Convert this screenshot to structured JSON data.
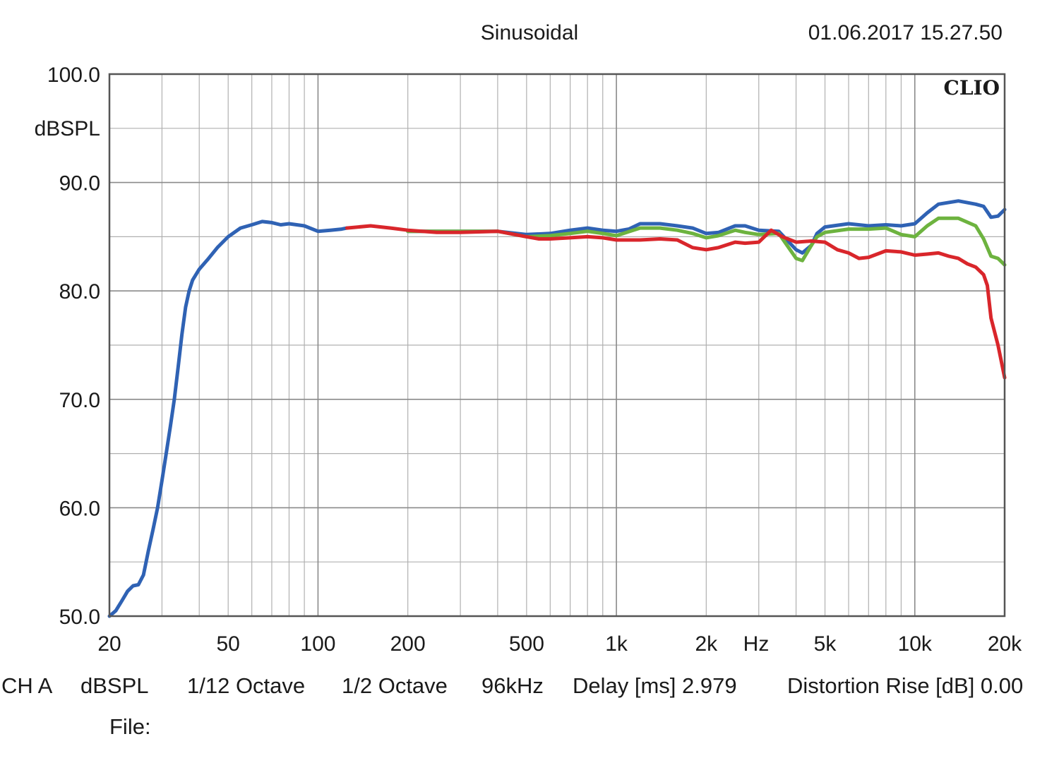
{
  "header": {
    "mode": "Sinusoidal",
    "timestamp": "01.06.2017 15.27.50"
  },
  "logo_text": "CLIO",
  "chart_data": {
    "type": "line",
    "x_scale": "log",
    "xlim": [
      20,
      20000
    ],
    "ylim": [
      50,
      100
    ],
    "y_unit": "dBSPL",
    "x_unit": "Hz",
    "y_ticks": [
      "100.0",
      "90.0",
      "80.0",
      "70.0",
      "60.0",
      "50.0"
    ],
    "x_ticks": [
      {
        "value": 20,
        "label": "20"
      },
      {
        "value": 50,
        "label": "50"
      },
      {
        "value": 100,
        "label": "100"
      },
      {
        "value": 200,
        "label": "200"
      },
      {
        "value": 500,
        "label": "500"
      },
      {
        "value": 1000,
        "label": "1k"
      },
      {
        "value": 2000,
        "label": "2k"
      },
      {
        "value": 5000,
        "label": "5k"
      },
      {
        "value": 10000,
        "label": "10k"
      },
      {
        "value": 20000,
        "label": "20k"
      }
    ],
    "grid": true,
    "series": [
      {
        "color": "#2f62b4",
        "points": [
          [
            20,
            50.0
          ],
          [
            21,
            50.5
          ],
          [
            22,
            51.4
          ],
          [
            23,
            52.3
          ],
          [
            24,
            52.8
          ],
          [
            25,
            52.9
          ],
          [
            26,
            53.8
          ],
          [
            27,
            56.0
          ],
          [
            28,
            58.0
          ],
          [
            29,
            60.0
          ],
          [
            30,
            62.5
          ],
          [
            31,
            65.0
          ],
          [
            32,
            67.5
          ],
          [
            33,
            70.0
          ],
          [
            34,
            73.0
          ],
          [
            35,
            76.0
          ],
          [
            36,
            78.5
          ],
          [
            37,
            80.0
          ],
          [
            38,
            81.0
          ],
          [
            40,
            82.0
          ],
          [
            43,
            83.0
          ],
          [
            46,
            84.0
          ],
          [
            50,
            85.0
          ],
          [
            55,
            85.8
          ],
          [
            60,
            86.1
          ],
          [
            65,
            86.4
          ],
          [
            70,
            86.3
          ],
          [
            75,
            86.1
          ],
          [
            80,
            86.2
          ],
          [
            90,
            86.0
          ],
          [
            100,
            85.5
          ],
          [
            110,
            85.6
          ],
          [
            120,
            85.7
          ],
          [
            125,
            85.8
          ]
        ]
      },
      {
        "color": "#2f62b4",
        "points": [
          [
            200,
            85.5
          ],
          [
            300,
            85.5
          ],
          [
            400,
            85.5
          ],
          [
            500,
            85.2
          ],
          [
            600,
            85.3
          ],
          [
            700,
            85.6
          ],
          [
            800,
            85.8
          ],
          [
            900,
            85.6
          ],
          [
            1000,
            85.5
          ],
          [
            1100,
            85.7
          ],
          [
            1200,
            86.2
          ],
          [
            1400,
            86.2
          ],
          [
            1600,
            86.0
          ],
          [
            1800,
            85.8
          ],
          [
            2000,
            85.3
          ],
          [
            2200,
            85.4
          ],
          [
            2500,
            86.0
          ],
          [
            2700,
            86.0
          ],
          [
            3000,
            85.6
          ],
          [
            3500,
            85.5
          ],
          [
            4000,
            83.8
          ],
          [
            4200,
            83.5
          ],
          [
            4500,
            84.2
          ],
          [
            4700,
            85.3
          ],
          [
            5000,
            85.9
          ],
          [
            6000,
            86.2
          ],
          [
            7000,
            86.0
          ],
          [
            8000,
            86.1
          ],
          [
            9000,
            86.0
          ],
          [
            10000,
            86.2
          ],
          [
            11000,
            87.2
          ],
          [
            12000,
            88.0
          ],
          [
            14000,
            88.3
          ],
          [
            16000,
            88.0
          ],
          [
            17000,
            87.8
          ],
          [
            18000,
            86.8
          ],
          [
            19000,
            86.9
          ],
          [
            20000,
            87.5
          ]
        ]
      },
      {
        "color": "#6db33f",
        "points": [
          [
            200,
            85.5
          ],
          [
            300,
            85.5
          ],
          [
            400,
            85.5
          ],
          [
            500,
            85.0
          ],
          [
            600,
            85.1
          ],
          [
            700,
            85.3
          ],
          [
            800,
            85.5
          ],
          [
            900,
            85.3
          ],
          [
            1000,
            85.1
          ],
          [
            1200,
            85.8
          ],
          [
            1400,
            85.8
          ],
          [
            1600,
            85.6
          ],
          [
            1800,
            85.3
          ],
          [
            2000,
            84.9
          ],
          [
            2200,
            85.1
          ],
          [
            2500,
            85.6
          ],
          [
            2700,
            85.4
          ],
          [
            3000,
            85.2
          ],
          [
            3500,
            85.3
          ],
          [
            4000,
            83.0
          ],
          [
            4200,
            82.8
          ],
          [
            4500,
            84.2
          ],
          [
            4700,
            85.0
          ],
          [
            5000,
            85.4
          ],
          [
            6000,
            85.7
          ],
          [
            7000,
            85.7
          ],
          [
            8000,
            85.8
          ],
          [
            9000,
            85.2
          ],
          [
            10000,
            85.0
          ],
          [
            11000,
            86.0
          ],
          [
            12000,
            86.7
          ],
          [
            14000,
            86.7
          ],
          [
            16000,
            86.0
          ],
          [
            17000,
            84.8
          ],
          [
            18000,
            83.2
          ],
          [
            19000,
            83.0
          ],
          [
            20000,
            82.4
          ]
        ]
      },
      {
        "color": "#d9262b",
        "points": [
          [
            125,
            85.8
          ],
          [
            150,
            86.0
          ],
          [
            175,
            85.8
          ],
          [
            200,
            85.6
          ],
          [
            250,
            85.4
          ],
          [
            300,
            85.4
          ],
          [
            400,
            85.5
          ],
          [
            500,
            85.0
          ],
          [
            550,
            84.8
          ],
          [
            600,
            84.8
          ],
          [
            700,
            84.9
          ],
          [
            800,
            85.0
          ],
          [
            900,
            84.9
          ],
          [
            1000,
            84.7
          ],
          [
            1200,
            84.7
          ],
          [
            1400,
            84.8
          ],
          [
            1600,
            84.7
          ],
          [
            1800,
            84.0
          ],
          [
            2000,
            83.8
          ],
          [
            2200,
            84.0
          ],
          [
            2500,
            84.5
          ],
          [
            2700,
            84.4
          ],
          [
            3000,
            84.5
          ],
          [
            3300,
            85.6
          ],
          [
            3600,
            85.0
          ],
          [
            4000,
            84.5
          ],
          [
            4500,
            84.6
          ],
          [
            5000,
            84.5
          ],
          [
            5500,
            83.8
          ],
          [
            6000,
            83.5
          ],
          [
            6500,
            83.0
          ],
          [
            7000,
            83.1
          ],
          [
            8000,
            83.7
          ],
          [
            9000,
            83.6
          ],
          [
            10000,
            83.3
          ],
          [
            11000,
            83.4
          ],
          [
            12000,
            83.5
          ],
          [
            13000,
            83.2
          ],
          [
            14000,
            83.0
          ],
          [
            15000,
            82.5
          ],
          [
            16000,
            82.2
          ],
          [
            17000,
            81.5
          ],
          [
            17500,
            80.5
          ],
          [
            18000,
            77.5
          ],
          [
            19000,
            75.0
          ],
          [
            20000,
            72.0
          ]
        ]
      }
    ]
  },
  "footer": {
    "channel": "CH A",
    "unit": "dBSPL",
    "smoothing": "1/12 Octave",
    "step": "1/2 Octave",
    "sample_rate": "96kHz",
    "delay": "Delay [ms] 2.979",
    "distortion": "Distortion Rise [dB] 0.00",
    "file_label": "File:"
  }
}
